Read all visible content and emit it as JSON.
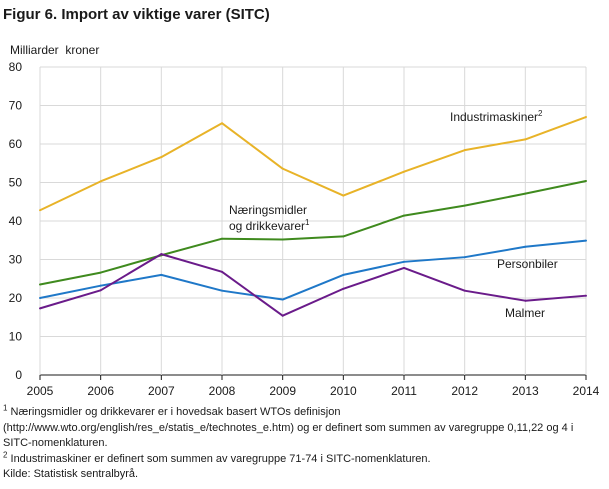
{
  "title": "Figur 6. Import av viktige varer (SITC)",
  "chart_data": {
    "type": "line",
    "ylabel": "Milliarder  kroner",
    "xlabel": "",
    "ylim": [
      0,
      80
    ],
    "yticks": [
      0,
      10,
      20,
      30,
      40,
      50,
      60,
      70,
      80
    ],
    "x": [
      2005,
      2006,
      2007,
      2008,
      2009,
      2010,
      2011,
      2012,
      2013,
      2014
    ],
    "grid": true,
    "series": [
      {
        "name": "Industrimaskiner",
        "sup": "2",
        "color": "#e8b328",
        "values": [
          42.8,
          50.3,
          56.6,
          65.4,
          53.6,
          46.6,
          52.8,
          58.4,
          61.2,
          67.0
        ]
      },
      {
        "name": "Næringsmidler og drikkevarer",
        "label_lines": [
          "Næringsmidler",
          "og drikkevarer"
        ],
        "sup": "1",
        "color": "#3f8a1e",
        "values": [
          23.5,
          26.6,
          31.1,
          35.4,
          35.2,
          36.0,
          41.4,
          44.0,
          47.1,
          50.4
        ]
      },
      {
        "name": "Personbiler",
        "sup": "",
        "color": "#1f78c8",
        "values": [
          20.0,
          23.2,
          26.0,
          21.9,
          19.6,
          26.0,
          29.4,
          30.6,
          33.3,
          34.9
        ]
      },
      {
        "name": "Malmer",
        "sup": "",
        "color": "#6a1b8a",
        "values": [
          17.3,
          22.0,
          31.4,
          26.8,
          15.4,
          22.4,
          27.8,
          21.9,
          19.3,
          20.6
        ]
      }
    ]
  },
  "footnotes": {
    "f1_mark": "1",
    "f1_text": " Næringsmidler og drikkevarer  er i hovedsak basert WTOs definisjon (http://www.wto.org/english/res_e/statis_e/technotes_e.htm)  og er definert som summen av varegruppe 0,11,22 og 4 i SITC-nomenklaturen.",
    "f2_mark": "2",
    "f2_text": " Industrimaskiner er definert som summen av varegruppe 71-74 i SITC-nomenklaturen.",
    "source": "Kilde: Statistisk sentralbyrå."
  }
}
